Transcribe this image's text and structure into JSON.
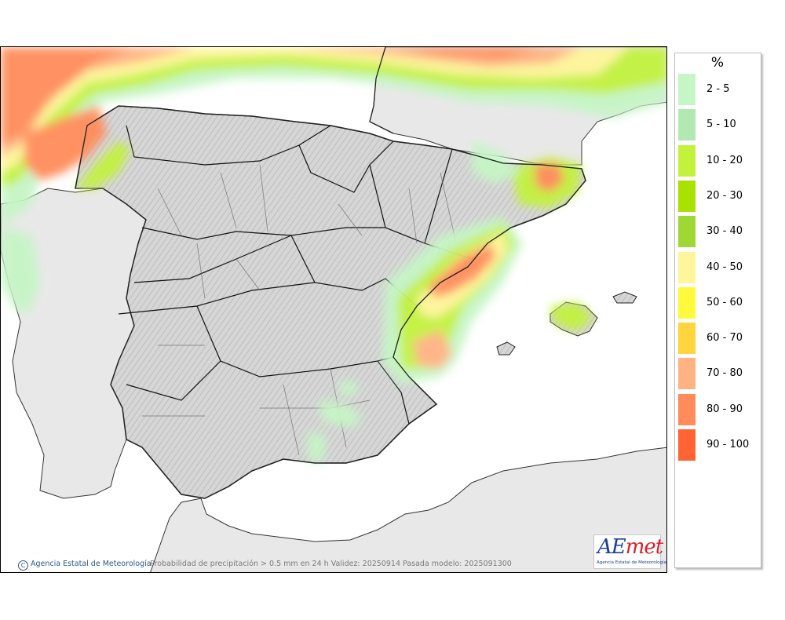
{
  "legend": {
    "unit": "%",
    "items": [
      {
        "label": "2 - 5",
        "color": "#c6f5c6"
      },
      {
        "label": "5 - 10",
        "color": "#b2e9b2"
      },
      {
        "label": "10 - 20",
        "color": "#c3f23c"
      },
      {
        "label": "20 - 30",
        "color": "#a9e200"
      },
      {
        "label": "30 - 40",
        "color": "#9fd835"
      },
      {
        "label": "40 - 50",
        "color": "#fff59a"
      },
      {
        "label": "50 - 60",
        "color": "#fffa3c"
      },
      {
        "label": "60 - 70",
        "color": "#ffd43c"
      },
      {
        "label": "70 - 80",
        "color": "#ffb282"
      },
      {
        "label": "80 - 90",
        "color": "#ff8c5a"
      },
      {
        "label": "90 - 100",
        "color": "#ff6432"
      }
    ]
  },
  "footer": {
    "copyright_symbol": "C",
    "credit": "Agencia Estatal de Meteorología",
    "caption": "Probabilidad de precipitación > 0.5 mm en 24 h Validez: 20250914 Pasada modelo: 2025091300"
  },
  "logo": {
    "name_a": "AE",
    "name_b": "met",
    "subtitle": "Agencia Estatal de Meteorología"
  },
  "map": {
    "land_color": "#d9d9d9",
    "foreign_land_color": "#e6e6e6",
    "sea_color": "#ffffff",
    "border_color": "#222222"
  }
}
